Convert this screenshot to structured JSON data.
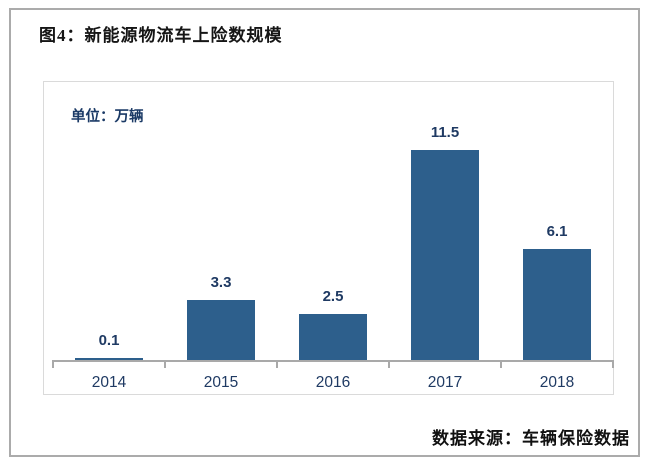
{
  "figure": {
    "title": "图4：新能源物流车上险数规模",
    "source": "数据来源：车辆保险数据"
  },
  "chart": {
    "unit_label": "单位：万辆"
  },
  "chart_data": {
    "type": "bar",
    "title": "新能源物流车上险数规模",
    "unit": "万辆",
    "categories": [
      "2014",
      "2015",
      "2016",
      "2017",
      "2018"
    ],
    "values": [
      0.1,
      3.3,
      2.5,
      11.5,
      6.1
    ],
    "value_labels": [
      "0.1",
      "3.3",
      "2.5",
      "11.5",
      "6.1"
    ],
    "xlabel": "",
    "ylabel": "单位：万辆",
    "ylim": [
      0,
      14.5
    ],
    "grid": false,
    "legend": false,
    "bar_color": "#2d5f8c",
    "label_color": "#1f3a63",
    "axis_color": "#a9a9a9"
  }
}
